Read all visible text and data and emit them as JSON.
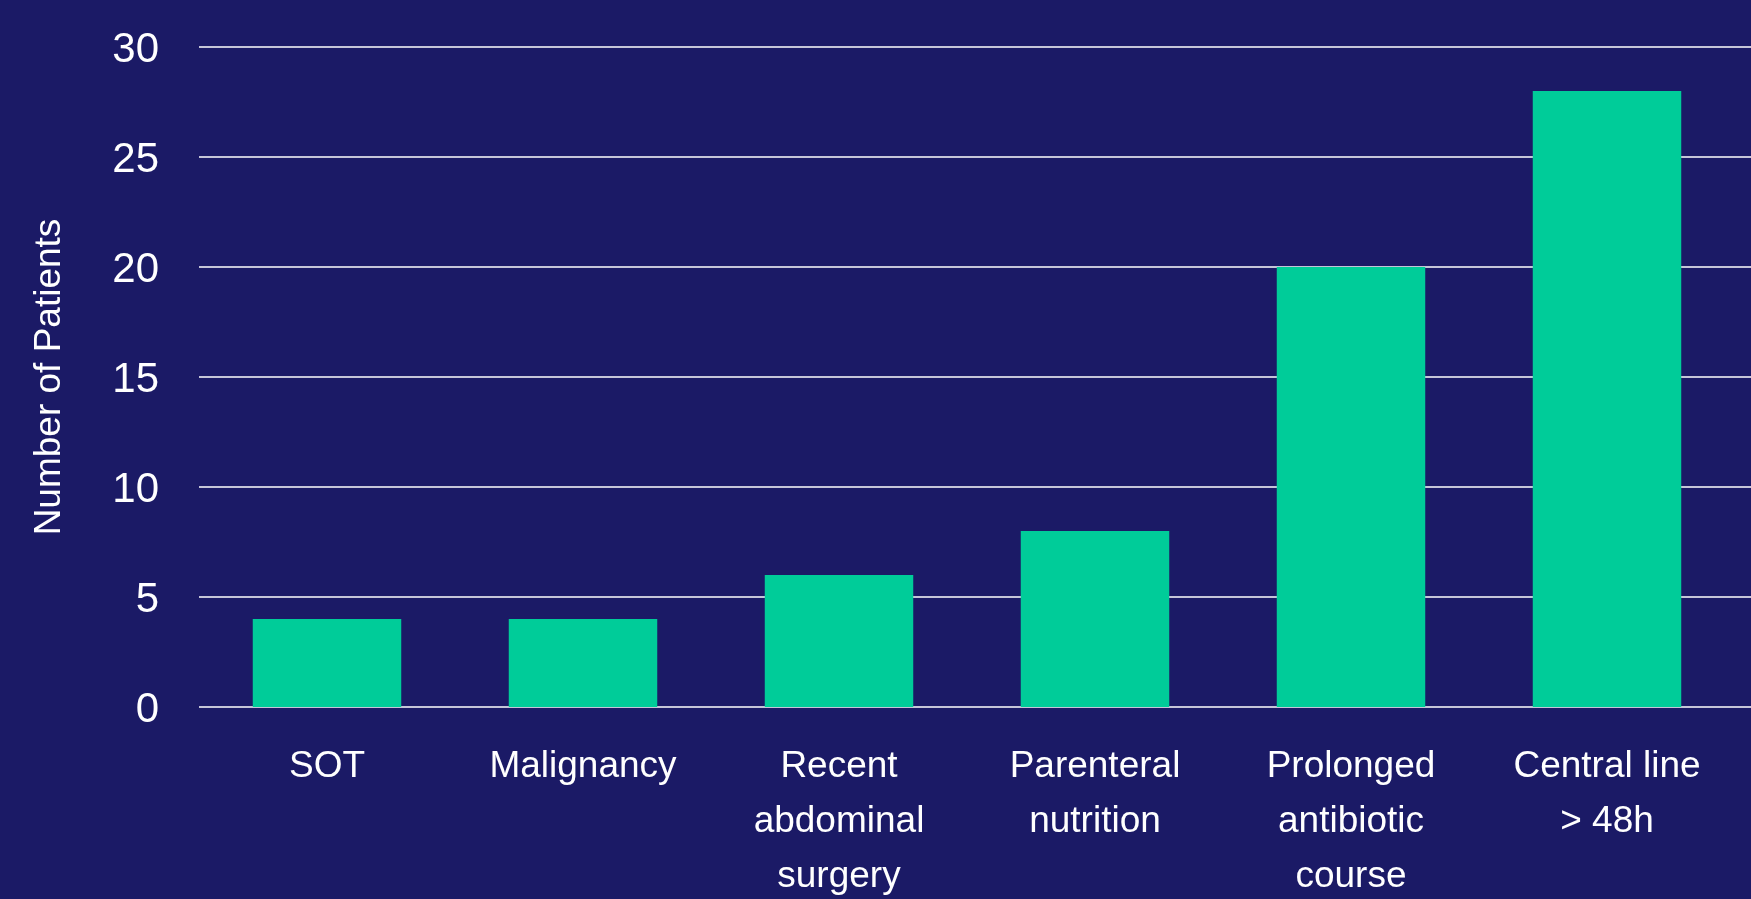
{
  "chart_data": {
    "type": "bar",
    "ylabel": "Number of Patients",
    "categories": [
      "SOT",
      "Malignancy",
      "Recent abdominal surgery",
      "Parenteral nutrition",
      "Prolonged antibiotic course",
      "Central line > 48h"
    ],
    "values": [
      4,
      4,
      6,
      8,
      20,
      28
    ],
    "color": "#00cc99",
    "ylim": [
      0,
      30
    ],
    "yticks": [
      0,
      5,
      10,
      15,
      20,
      25,
      30
    ],
    "grid": "y"
  }
}
